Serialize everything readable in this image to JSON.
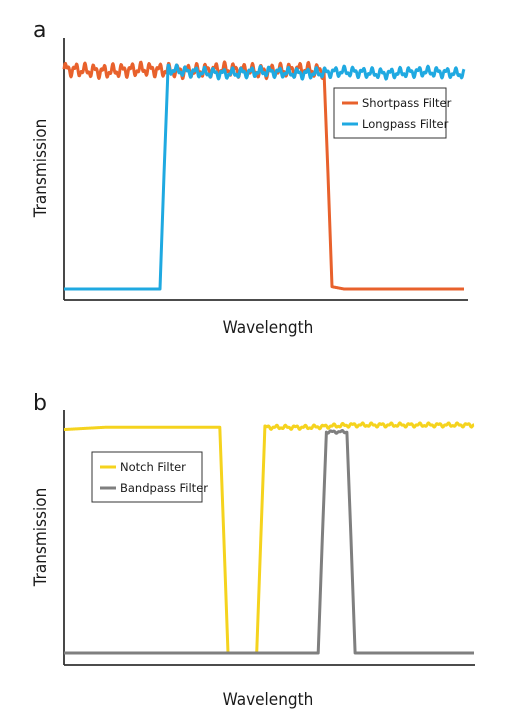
{
  "chart_data": [
    {
      "type": "line",
      "panel_label": "a",
      "title": "",
      "xlabel": "Wavelength",
      "ylabel": "Transmission",
      "xlim": [
        0,
        100
      ],
      "ylim": [
        0,
        1
      ],
      "grid": false,
      "ticks": "none",
      "legend": {
        "placement": "top-right"
      },
      "series": [
        {
          "name": "Shortpass Filter",
          "color": "#E8612C",
          "points": [
            [
              0,
              0.96
            ],
            [
              10,
              0.95
            ],
            [
              20,
              0.96
            ],
            [
              30,
              0.95
            ],
            [
              40,
              0.96
            ],
            [
              50,
              0.95
            ],
            [
              60,
              0.96
            ],
            [
              65,
              0.95
            ],
            [
              66,
              0.5
            ],
            [
              67,
              0.01
            ],
            [
              70,
              0.0
            ],
            [
              80,
              0.0
            ],
            [
              90,
              0.0
            ],
            [
              100,
              0.0
            ]
          ],
          "ripple": {
            "x_from": 0,
            "x_to": 65,
            "amplitude": 0.02
          }
        },
        {
          "name": "Longpass Filter",
          "color": "#1FA9E1",
          "points": [
            [
              0,
              0.0
            ],
            [
              10,
              0.0
            ],
            [
              20,
              0.0
            ],
            [
              24,
              0.0
            ],
            [
              25,
              0.5
            ],
            [
              26,
              0.96
            ],
            [
              30,
              0.95
            ],
            [
              40,
              0.94
            ],
            [
              50,
              0.95
            ],
            [
              60,
              0.94
            ],
            [
              70,
              0.95
            ],
            [
              80,
              0.94
            ],
            [
              90,
              0.95
            ],
            [
              100,
              0.94
            ]
          ],
          "ripple": {
            "x_from": 26,
            "x_to": 100,
            "amplitude": 0.015
          }
        }
      ]
    },
    {
      "type": "line",
      "panel_label": "b",
      "title": "",
      "xlabel": "Wavelength",
      "ylabel": "Transmission",
      "xlim": [
        0,
        100
      ],
      "ylim": [
        0,
        1
      ],
      "grid": false,
      "ticks": "none",
      "legend": {
        "placement": "top-left"
      },
      "series": [
        {
          "name": "Notch Filter",
          "color": "#F5D31E",
          "points": [
            [
              0,
              0.98
            ],
            [
              10,
              0.99
            ],
            [
              20,
              0.99
            ],
            [
              30,
              0.99
            ],
            [
              38,
              0.99
            ],
            [
              39,
              0.5
            ],
            [
              40,
              0.0
            ],
            [
              47,
              0.0
            ],
            [
              48,
              0.5
            ],
            [
              49,
              0.99
            ],
            [
              60,
              0.99
            ],
            [
              70,
              1.0
            ],
            [
              80,
              1.0
            ],
            [
              90,
              1.0
            ],
            [
              100,
              1.0
            ]
          ],
          "ripple": {
            "x_from": 49,
            "x_to": 100,
            "amplitude": 0.006
          }
        },
        {
          "name": "Bandpass Filter",
          "color": "#7F7F7F",
          "points": [
            [
              0,
              0.0
            ],
            [
              10,
              0.0
            ],
            [
              20,
              0.0
            ],
            [
              30,
              0.0
            ],
            [
              40,
              0.0
            ],
            [
              50,
              0.0
            ],
            [
              60,
              0.0
            ],
            [
              62,
              0.0
            ],
            [
              63,
              0.5
            ],
            [
              64,
              0.97
            ],
            [
              69,
              0.97
            ],
            [
              70,
              0.5
            ],
            [
              71,
              0.0
            ],
            [
              80,
              0.0
            ],
            [
              90,
              0.0
            ],
            [
              100,
              0.0
            ]
          ],
          "ripple": {
            "x_from": 64,
            "x_to": 69,
            "amplitude": 0.004
          }
        }
      ]
    }
  ]
}
